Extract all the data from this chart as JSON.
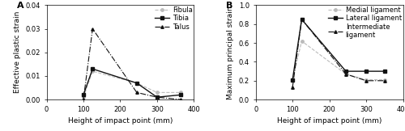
{
  "panel_A": {
    "x": [
      100,
      125,
      245,
      300,
      365
    ],
    "fibula": [
      0.001,
      0.012,
      0.007,
      0.003,
      0.003
    ],
    "tibia": [
      0.002,
      0.013,
      0.007,
      0.001,
      0.002
    ],
    "talus": [
      0.0,
      0.03,
      0.003,
      0.001,
      0.0
    ],
    "ylabel": "Effective plastic strain",
    "xlabel": "Height of impact point (mm)",
    "ylim": [
      0,
      0.04
    ],
    "yticks": [
      0.0,
      0.01,
      0.02,
      0.03,
      0.04
    ],
    "xlim": [
      0,
      400
    ],
    "xticks": [
      0,
      100,
      200,
      300,
      400
    ],
    "label": "A"
  },
  "panel_B": {
    "x": [
      100,
      125,
      245,
      300,
      350
    ],
    "medial": [
      0.21,
      0.62,
      0.27,
      0.21,
      0.21
    ],
    "lateral": [
      0.21,
      0.85,
      0.3,
      0.3,
      0.3
    ],
    "intermediate": [
      0.13,
      0.85,
      0.27,
      0.2,
      0.2
    ],
    "ylabel": "Maximum principal strain",
    "xlabel": "Height of impact point (mm)",
    "ylim": [
      0.0,
      1.0
    ],
    "yticks": [
      0.0,
      0.2,
      0.4,
      0.6,
      0.8,
      1.0
    ],
    "xlim": [
      0,
      400
    ],
    "xticks": [
      0,
      100,
      200,
      300,
      400
    ],
    "label": "B"
  },
  "line_color_gray": "#bbbbbb",
  "line_color_black": "#111111",
  "fontsize_label": 6.5,
  "fontsize_axis": 6,
  "fontsize_panel": 8
}
